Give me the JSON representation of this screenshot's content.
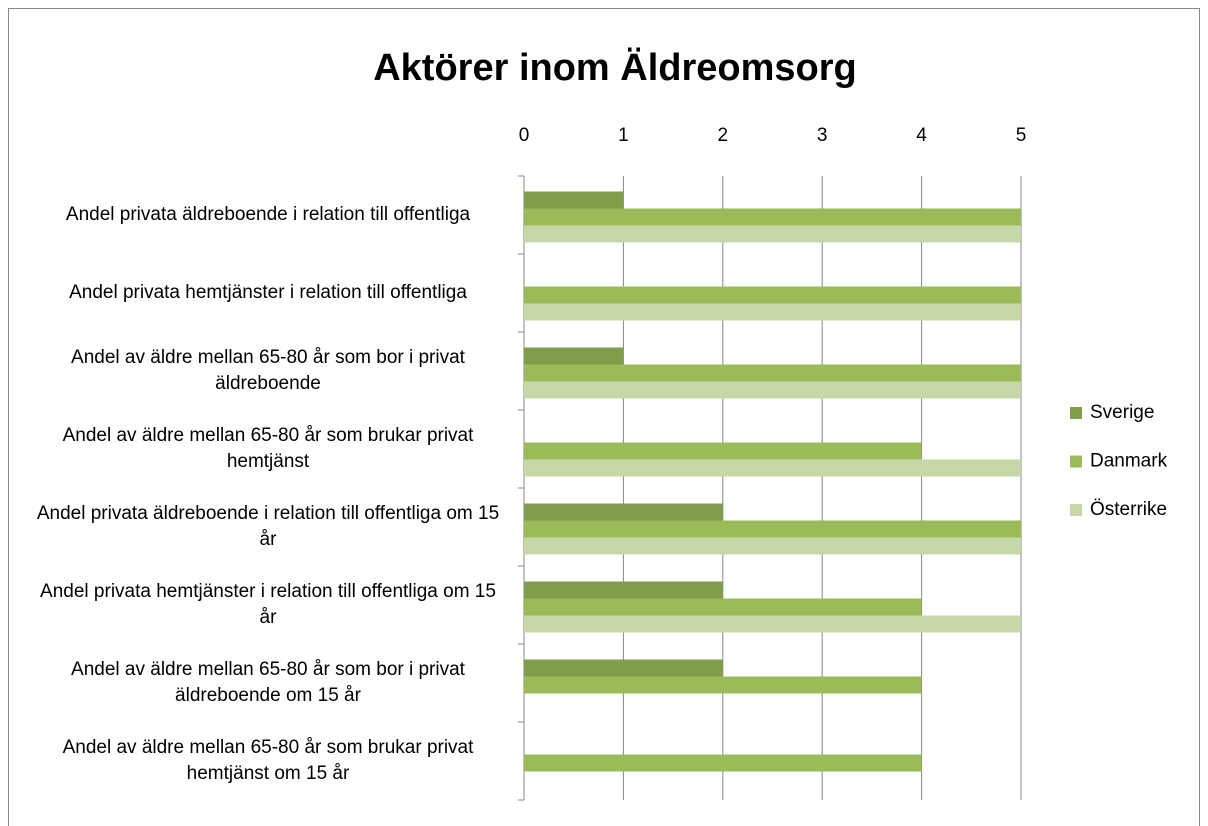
{
  "chart_data": {
    "type": "bar",
    "orientation": "horizontal",
    "title": "Aktörer inom Äldreomsorg",
    "categories": [
      "Andel privata äldreboende i relation till offentliga",
      "Andel privata hemtjänster i relation till offentliga",
      "Andel av äldre mellan 65-80 år som bor i privat äldreboende",
      "Andel av äldre mellan 65-80 år som brukar privat hemtjänst",
      "Andel privata äldreboende i relation till offentliga om 15 år",
      "Andel privata hemtjänster i relation till offentliga om 15 år",
      "Andel av äldre mellan 65-80 år som bor i privat äldreboende om 15 år",
      "Andel av äldre mellan 65-80 år som brukar privat hemtjänst om 15 år"
    ],
    "series": [
      {
        "name": "Sverige",
        "color": "#7f9e4c",
        "values": [
          1,
          0,
          1,
          0,
          2,
          2,
          2,
          0
        ]
      },
      {
        "name": "Danmark",
        "color": "#9bbb59",
        "values": [
          5,
          5,
          5,
          4,
          5,
          4,
          4,
          4
        ]
      },
      {
        "name": "Österrike",
        "color": "#c6d8a8",
        "values": [
          5,
          5,
          5,
          5,
          5,
          5,
          0,
          0
        ]
      }
    ],
    "xlim": [
      0,
      5
    ],
    "xticks": [
      0,
      1,
      2,
      3,
      4,
      5
    ],
    "grid": true,
    "legend": "right"
  }
}
